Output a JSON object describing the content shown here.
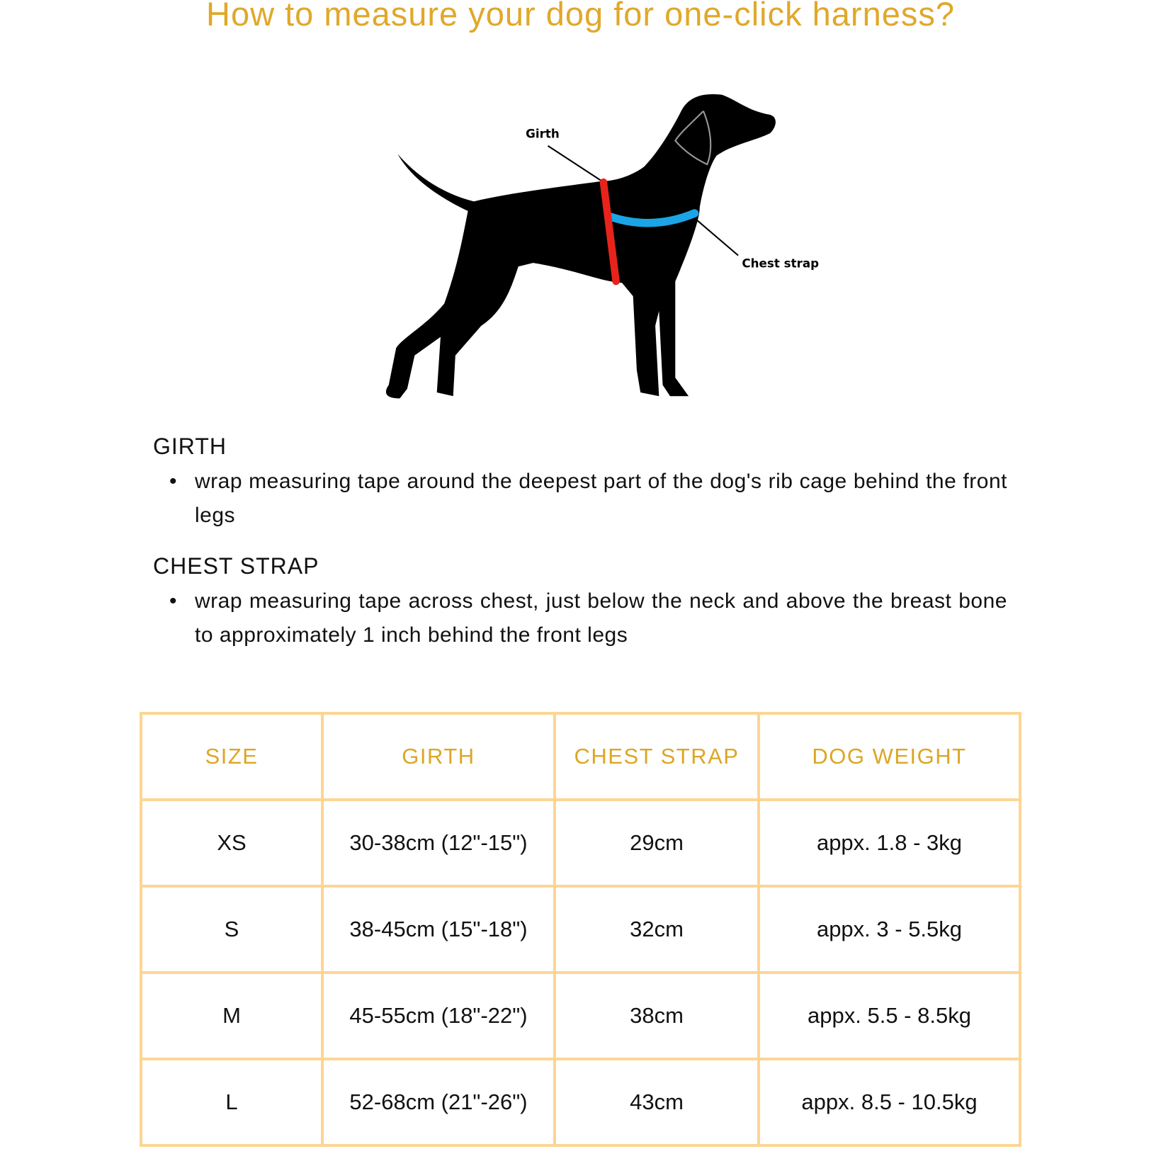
{
  "title": "How to measure your dog for one-click harness?",
  "diagram": {
    "girth_label": "Girth",
    "chest_strap_label": "Chest strap",
    "girth_color": "#e8231b",
    "chest_strap_color": "#1ba5e6"
  },
  "sections": [
    {
      "heading": "GIRTH",
      "bullet": "wrap measuring tape around the deepest part of the dog's rib cage behind the front legs"
    },
    {
      "heading": "CHEST STRAP",
      "bullet": "wrap measuring tape across chest, just below the neck and above the breast bone to approximately 1 inch behind the front legs"
    }
  ],
  "table": {
    "headers": [
      "SIZE",
      "GIRTH",
      "CHEST STRAP",
      "DOG WEIGHT"
    ],
    "rows": [
      [
        "XS",
        "30-38cm (12\"-15\")",
        "29cm",
        "appx. 1.8 - 3kg"
      ],
      [
        "S",
        "38-45cm (15\"-18\")",
        "32cm",
        "appx. 3 - 5.5kg"
      ],
      [
        "M",
        "45-55cm (18\"-22\")",
        "38cm",
        "appx. 5.5 - 8.5kg"
      ],
      [
        "L",
        "52-68cm (21\"-26\")",
        "43cm",
        "appx. 8.5 - 10.5kg"
      ]
    ]
  },
  "colors": {
    "accent": "#e0a82a",
    "table_border": "#fdd593"
  }
}
